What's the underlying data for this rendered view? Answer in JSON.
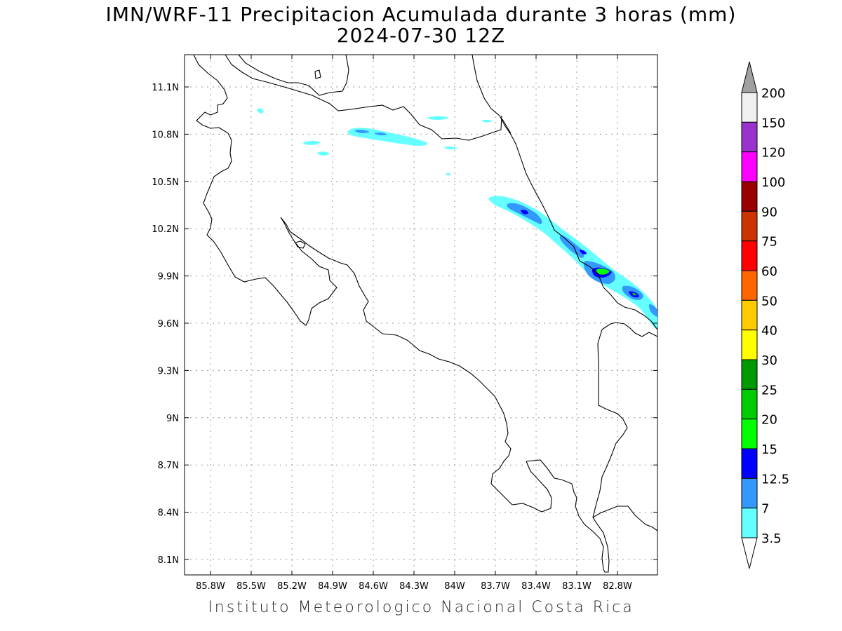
{
  "title_line1": "IMN/WRF-11 Precipitacion Acumulada durante 3 horas (mm)",
  "title_line2": "2024-07-30 12Z",
  "footer": "Instituto Meteorologico Nacional Costa Rica",
  "map": {
    "lon_ticks": [
      "85.8W",
      "85.5W",
      "85.2W",
      "84.9W",
      "84.6W",
      "84.3W",
      "84W",
      "83.7W",
      "83.4W",
      "83.1W",
      "82.8W"
    ],
    "lat_ticks": [
      "11.1N",
      "10.8N",
      "10.5N",
      "10.2N",
      "9.9N",
      "9.6N",
      "9.3N",
      "9N",
      "8.7N",
      "8.4N",
      "8.1N"
    ],
    "grid": "dotted",
    "coastline_color": "#000000"
  },
  "colorbar": {
    "labels": [
      "200",
      "150",
      "120",
      "100",
      "90",
      "75",
      "60",
      "50",
      "40",
      "30",
      "25",
      "20",
      "15",
      "12.5",
      "7",
      "3.5"
    ],
    "colors": [
      "#f0f0f0",
      "#9933cc",
      "#ff00ff",
      "#990000",
      "#cc3300",
      "#ff0000",
      "#ff6600",
      "#ffcc00",
      "#ffff00",
      "#009900",
      "#00cc00",
      "#00ff00",
      "#0000ff",
      "#3399ff",
      "#66ffff"
    ],
    "over_color": "#a0a0a0",
    "under_color": "#ffffff"
  }
}
